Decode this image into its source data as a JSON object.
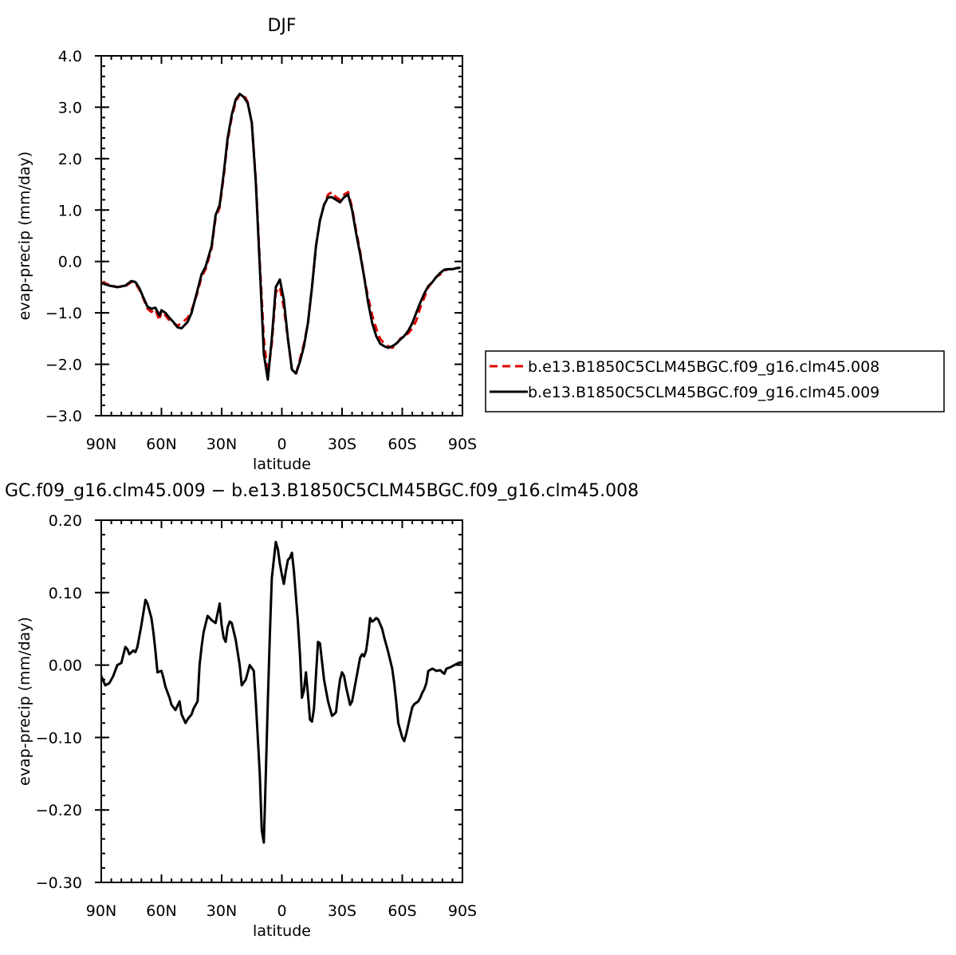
{
  "chart_data": [
    {
      "type": "line",
      "title": "DJF",
      "xlabel": "latitude",
      "ylabel": "evap-precip (mm/day)",
      "xlim": [
        90,
        -90
      ],
      "ylim": [
        -3.0,
        4.0
      ],
      "x_ticks": [
        {
          "value": 90,
          "label": "90N"
        },
        {
          "value": 60,
          "label": "60N"
        },
        {
          "value": 30,
          "label": "30N"
        },
        {
          "value": 0,
          "label": "0"
        },
        {
          "value": -30,
          "label": "30S"
        },
        {
          "value": -60,
          "label": "60S"
        },
        {
          "value": -90,
          "label": "90S"
        }
      ],
      "y_ticks": [
        {
          "value": 4.0,
          "label": "4.0"
        },
        {
          "value": 3.0,
          "label": "3.0"
        },
        {
          "value": 2.0,
          "label": "2.0"
        },
        {
          "value": 1.0,
          "label": "1.0"
        },
        {
          "value": 0.0,
          "label": "0.0"
        },
        {
          "value": -1.0,
          "label": "−1.0"
        },
        {
          "value": -2.0,
          "label": "−2.0"
        },
        {
          "value": -3.0,
          "label": "−3.0"
        }
      ],
      "legend": "right",
      "series": [
        {
          "name": "b.e13.B1850C5CLM45BGC.f09_g16.clm45.008",
          "color": "#e00000",
          "dash": "dashed",
          "x": [
            90,
            86,
            82,
            78,
            75,
            73,
            71,
            69,
            67,
            65,
            63,
            61,
            60,
            58,
            56,
            54,
            52,
            50,
            47,
            45,
            42,
            40,
            38,
            35,
            33,
            31,
            29,
            27,
            25,
            23,
            21,
            19,
            17,
            15,
            13,
            11,
            9,
            7,
            5,
            3,
            1,
            -1,
            -3,
            -5,
            -7,
            -9,
            -11,
            -13,
            -15,
            -17,
            -19,
            -21,
            -23,
            -25,
            -27,
            -29,
            -31,
            -33,
            -35,
            -37,
            -39,
            -41,
            -43,
            -45,
            -47,
            -49,
            -51,
            -53,
            -55,
            -57,
            -59,
            -61,
            -63,
            -65,
            -67,
            -69,
            -71,
            -73,
            -75,
            -77,
            -79,
            -81,
            -83,
            -85,
            -87,
            -89
          ],
          "values": [
            -0.4,
            -0.45,
            -0.5,
            -0.48,
            -0.4,
            -0.42,
            -0.55,
            -0.72,
            -0.92,
            -0.98,
            -0.93,
            -1.15,
            -0.95,
            -1.05,
            -1.15,
            -1.2,
            -1.25,
            -1.2,
            -1.1,
            -0.95,
            -0.6,
            -0.3,
            -0.15,
            0.25,
            0.85,
            1.05,
            1.65,
            2.35,
            2.8,
            3.1,
            3.25,
            3.25,
            3.1,
            2.7,
            1.6,
            0.0,
            -1.5,
            -2.2,
            -1.6,
            -0.6,
            -0.5,
            -0.9,
            -1.5,
            -2.1,
            -2.2,
            -1.9,
            -1.6,
            -1.2,
            -0.5,
            0.3,
            0.8,
            1.1,
            1.3,
            1.35,
            1.25,
            1.2,
            1.3,
            1.35,
            1.05,
            0.6,
            0.2,
            -0.3,
            -0.7,
            -1.05,
            -1.3,
            -1.5,
            -1.6,
            -1.65,
            -1.68,
            -1.62,
            -1.5,
            -1.45,
            -1.4,
            -1.3,
            -1.15,
            -0.9,
            -0.7,
            -0.5,
            -0.4,
            -0.3,
            -0.25,
            -0.18,
            -0.15,
            -0.15,
            -0.13,
            -0.12
          ]
        },
        {
          "name": "b.e13.B1850C5CLM45BGC.f09_g16.clm45.009",
          "color": "#000000",
          "dash": "solid",
          "x": [
            90,
            86,
            82,
            78,
            75,
            73,
            71,
            69,
            67,
            65,
            63,
            61,
            60,
            58,
            56,
            54,
            52,
            50,
            47,
            45,
            42,
            40,
            38,
            35,
            33,
            31,
            29,
            27,
            25,
            23,
            21,
            19,
            17,
            15,
            13,
            11,
            9,
            7,
            5,
            3,
            1,
            -1,
            -3,
            -5,
            -7,
            -9,
            -11,
            -13,
            -15,
            -17,
            -19,
            -21,
            -23,
            -25,
            -27,
            -29,
            -31,
            -33,
            -35,
            -37,
            -39,
            -41,
            -43,
            -45,
            -47,
            -49,
            -51,
            -53,
            -55,
            -57,
            -59,
            -61,
            -63,
            -65,
            -67,
            -69,
            -71,
            -73,
            -75,
            -77,
            -79,
            -81,
            -83,
            -85,
            -87,
            -89
          ],
          "values": [
            -0.42,
            -0.47,
            -0.5,
            -0.47,
            -0.38,
            -0.4,
            -0.52,
            -0.7,
            -0.88,
            -0.92,
            -0.9,
            -1.05,
            -0.95,
            -1.0,
            -1.1,
            -1.18,
            -1.28,
            -1.3,
            -1.18,
            -1.0,
            -0.55,
            -0.25,
            -0.1,
            0.3,
            0.9,
            1.1,
            1.7,
            2.4,
            2.85,
            3.15,
            3.26,
            3.2,
            3.08,
            2.7,
            1.55,
            -0.1,
            -1.8,
            -2.3,
            -1.5,
            -0.5,
            -0.35,
            -0.75,
            -1.5,
            -2.1,
            -2.18,
            -1.95,
            -1.65,
            -1.2,
            -0.5,
            0.3,
            0.8,
            1.1,
            1.25,
            1.25,
            1.2,
            1.15,
            1.25,
            1.3,
            1.0,
            0.55,
            0.15,
            -0.3,
            -0.8,
            -1.2,
            -1.45,
            -1.6,
            -1.65,
            -1.68,
            -1.65,
            -1.6,
            -1.52,
            -1.45,
            -1.35,
            -1.2,
            -1.0,
            -0.8,
            -0.62,
            -0.48,
            -0.4,
            -0.3,
            -0.22,
            -0.16,
            -0.15,
            -0.15,
            -0.13,
            -0.12
          ]
        }
      ]
    },
    {
      "type": "line",
      "title": "GC.f09_g16.clm45.009 − b.e13.B1850C5CLM45BGC.f09_g16.clm45.008",
      "xlabel": "latitude",
      "ylabel": "evap-precip (mm/day)",
      "xlim": [
        90,
        -90
      ],
      "ylim": [
        -0.3,
        0.2
      ],
      "x_ticks": [
        {
          "value": 90,
          "label": "90N"
        },
        {
          "value": 60,
          "label": "60N"
        },
        {
          "value": 30,
          "label": "30N"
        },
        {
          "value": 0,
          "label": "0"
        },
        {
          "value": -30,
          "label": "30S"
        },
        {
          "value": -60,
          "label": "60S"
        },
        {
          "value": -90,
          "label": "90S"
        }
      ],
      "y_ticks": [
        {
          "value": 0.2,
          "label": "0.20"
        },
        {
          "value": 0.1,
          "label": "0.10"
        },
        {
          "value": 0.0,
          "label": "0.00"
        },
        {
          "value": -0.1,
          "label": "−0.10"
        },
        {
          "value": -0.2,
          "label": "−0.20"
        },
        {
          "value": -0.3,
          "label": "−0.30"
        }
      ],
      "series": [
        {
          "color": "#000000",
          "dash": "solid",
          "x": [
            90,
            88,
            86,
            84,
            82,
            80,
            78,
            77,
            76,
            74,
            73,
            72,
            71,
            70,
            68,
            67,
            66,
            65,
            64,
            63,
            62,
            60,
            59,
            58,
            56,
            55,
            53,
            51,
            50,
            48,
            47,
            45,
            44,
            42,
            41,
            40,
            39,
            37,
            35,
            33,
            31,
            30,
            29,
            28,
            27,
            26,
            25,
            23,
            21,
            20,
            18,
            16,
            14,
            13,
            11,
            10,
            9,
            8,
            7,
            6,
            5,
            3,
            2,
            1,
            0,
            -1,
            -2,
            -3,
            -4,
            -5,
            -6,
            -8,
            -9,
            -10,
            -11,
            -12,
            -13,
            -14,
            -15,
            -16,
            -18,
            -19,
            -21,
            -22,
            -23,
            -24,
            -25,
            -26,
            -27,
            -28,
            -29,
            -30,
            -31,
            -32,
            -34,
            -35,
            -37,
            -38,
            -39,
            -40,
            -41,
            -42,
            -43,
            -44,
            -45,
            -46,
            -47,
            -48,
            -50,
            -51,
            -53,
            -55,
            -56,
            -57,
            -58,
            -60,
            -61,
            -62,
            -64,
            -65,
            -66,
            -68,
            -69,
            -70,
            -71,
            -72,
            -73,
            -75,
            -77,
            -79,
            -80,
            -81,
            -82,
            -84,
            -86,
            -88,
            -90
          ],
          "values": [
            -0.015,
            -0.028,
            -0.025,
            -0.015,
            0.0,
            0.003,
            0.025,
            0.022,
            0.015,
            0.02,
            0.018,
            0.025,
            0.04,
            0.055,
            0.09,
            0.085,
            0.075,
            0.065,
            0.045,
            0.02,
            -0.01,
            -0.008,
            -0.018,
            -0.03,
            -0.045,
            -0.055,
            -0.062,
            -0.05,
            -0.068,
            -0.08,
            -0.075,
            -0.068,
            -0.06,
            -0.05,
            0.0,
            0.025,
            0.045,
            0.068,
            0.062,
            0.058,
            0.085,
            0.055,
            0.038,
            0.032,
            0.052,
            0.06,
            0.058,
            0.035,
            0.0,
            -0.028,
            -0.02,
            0.0,
            -0.008,
            -0.05,
            -0.15,
            -0.228,
            -0.245,
            -0.15,
            -0.05,
            0.04,
            0.12,
            0.17,
            0.16,
            0.14,
            0.125,
            0.112,
            0.13,
            0.145,
            0.148,
            0.155,
            0.13,
            0.06,
            0.015,
            -0.045,
            -0.035,
            -0.01,
            -0.04,
            -0.075,
            -0.078,
            -0.06,
            0.032,
            0.03,
            -0.02,
            -0.035,
            -0.05,
            -0.06,
            -0.07,
            -0.068,
            -0.065,
            -0.04,
            -0.02,
            -0.01,
            -0.015,
            -0.03,
            -0.055,
            -0.05,
            -0.02,
            -0.005,
            0.01,
            0.015,
            0.012,
            0.02,
            0.04,
            0.065,
            0.06,
            0.062,
            0.065,
            0.063,
            0.05,
            0.038,
            0.018,
            -0.005,
            -0.025,
            -0.05,
            -0.08,
            -0.1,
            -0.105,
            -0.095,
            -0.07,
            -0.058,
            -0.054,
            -0.05,
            -0.045,
            -0.038,
            -0.033,
            -0.025,
            -0.008,
            -0.005,
            -0.008,
            -0.007,
            -0.01,
            -0.012,
            -0.005,
            -0.003,
            0.0,
            0.003,
            0.004
          ]
        }
      ]
    }
  ]
}
